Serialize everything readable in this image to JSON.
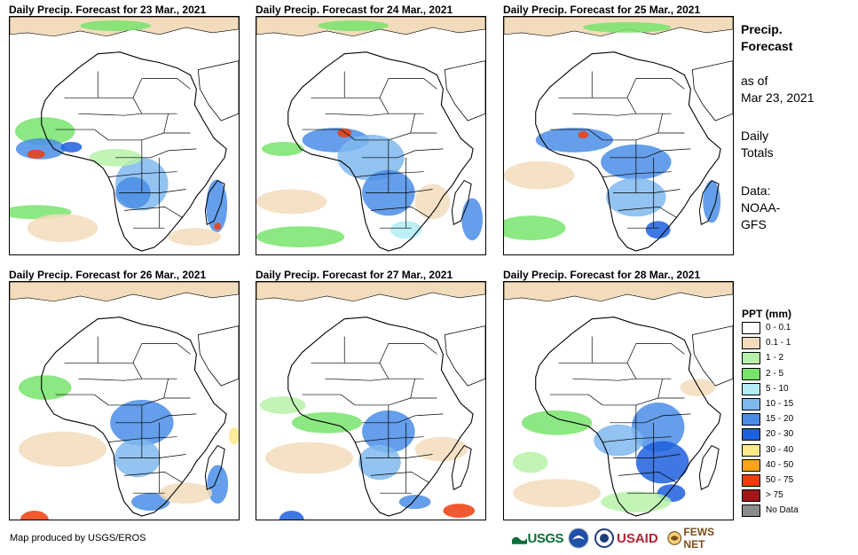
{
  "panels": [
    {
      "title": "Daily Precip. Forecast for 23 Mar., 2021"
    },
    {
      "title": "Daily Precip. Forecast for 24 Mar., 2021"
    },
    {
      "title": "Daily Precip. Forecast for 25 Mar., 2021"
    },
    {
      "title": "Daily Precip. Forecast for 26 Mar., 2021"
    },
    {
      "title": "Daily Precip. Forecast for 27 Mar., 2021"
    },
    {
      "title": "Daily Precip. Forecast for 28 Mar., 2021"
    }
  ],
  "sidebar": {
    "title_line1": "Precip.",
    "title_line2": "Forecast",
    "asof_line1": "as of",
    "asof_line2": "Mar 23, 2021",
    "totals_line1": "Daily",
    "totals_line2": "Totals",
    "source_line1": "Data:",
    "source_line2": "NOAA-",
    "source_line3": "GFS"
  },
  "legend": {
    "title": "PPT (mm)",
    "items": [
      {
        "label": "0 - 0.1",
        "color": "#ffffff"
      },
      {
        "label": "0.1 - 1",
        "color": "#f2dcbc"
      },
      {
        "label": "1 - 2",
        "color": "#b7f2a8"
      },
      {
        "label": "2 - 5",
        "color": "#78e46c"
      },
      {
        "label": "5 - 10",
        "color": "#b2ecf5"
      },
      {
        "label": "10 - 15",
        "color": "#7fb8ee"
      },
      {
        "label": "15 - 20",
        "color": "#4a8de6"
      },
      {
        "label": "20 - 30",
        "color": "#1d5fde"
      },
      {
        "label": "30 - 40",
        "color": "#fde98a"
      },
      {
        "label": "40 - 50",
        "color": "#fba418"
      },
      {
        "label": "50 - 75",
        "color": "#f03c0c"
      },
      {
        "label": "> 75",
        "color": "#a11616"
      },
      {
        "label": "No Data",
        "color": "#8c8c8c"
      }
    ]
  },
  "credit": "Map produced by USGS/EROS",
  "logos": {
    "usgs": "USGS",
    "usaid": "USAID",
    "fews": "FEWS NET"
  }
}
